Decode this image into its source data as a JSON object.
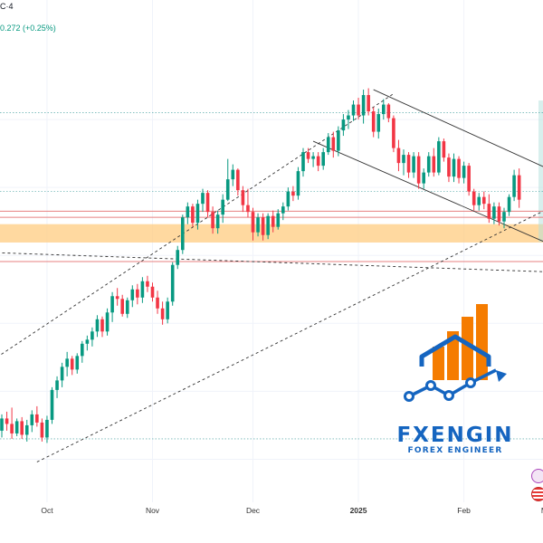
{
  "header": {
    "title_fragment": "C·4",
    "change_text": "0.272 (+0.25%)"
  },
  "colors": {
    "up": "#089981",
    "down": "#f23645",
    "brand": "#1565c0",
    "brand_orange": "#f57c00",
    "zone": "#ffcc80",
    "channel": "#333333",
    "resistance": "#e57373",
    "dotted_level": "#4fa5a5"
  },
  "branding": {
    "name": "FXENGIN",
    "tagline": "FOREX ENGINEER",
    "logo_icon": "rising-bars-chart-icon"
  },
  "side_icons": [
    "lightning-icon",
    "us-flag-icon"
  ],
  "chart_data": {
    "type": "candlestick",
    "x_ticks": [
      "Oct",
      "Nov",
      "Dec",
      "2025",
      "Feb",
      "M"
    ],
    "series": [
      {
        "ohlc": [
          [
            139.6,
            140.8,
            139.1,
            140.5
          ],
          [
            140.5,
            141.0,
            139.6,
            140.1
          ],
          [
            140.1,
            141.3,
            139.0,
            139.4
          ],
          [
            139.4,
            140.5,
            139.2,
            140.3
          ],
          [
            140.3,
            140.6,
            139.0,
            139.3
          ],
          [
            139.3,
            140.4,
            138.8,
            140.0
          ],
          [
            140.0,
            141.1,
            139.5,
            140.8
          ],
          [
            140.8,
            141.4,
            139.9,
            140.2
          ],
          [
            140.2,
            140.5,
            138.8,
            139.1
          ],
          [
            139.1,
            140.7,
            138.7,
            140.4
          ],
          [
            140.4,
            142.8,
            140.1,
            142.6
          ],
          [
            142.6,
            143.6,
            142.0,
            143.3
          ],
          [
            143.3,
            144.6,
            142.8,
            144.3
          ],
          [
            144.3,
            145.4,
            143.6,
            144.9
          ],
          [
            144.9,
            145.1,
            143.7,
            144.1
          ],
          [
            144.1,
            145.3,
            143.8,
            145.1
          ],
          [
            145.1,
            146.2,
            144.6,
            146.0
          ],
          [
            146.0,
            146.6,
            145.5,
            146.3
          ],
          [
            146.3,
            147.2,
            145.8,
            146.9
          ],
          [
            146.9,
            148.1,
            146.5,
            147.8
          ],
          [
            147.8,
            148.0,
            146.5,
            146.9
          ],
          [
            146.9,
            148.6,
            146.6,
            148.3
          ],
          [
            148.3,
            149.8,
            147.6,
            149.5
          ],
          [
            149.5,
            150.1,
            148.8,
            149.3
          ],
          [
            149.3,
            149.6,
            148.0,
            148.2
          ],
          [
            148.2,
            149.4,
            147.9,
            149.2
          ],
          [
            149.2,
            150.3,
            148.7,
            150.0
          ],
          [
            150.0,
            150.4,
            148.9,
            149.4
          ],
          [
            149.4,
            150.9,
            149.0,
            150.6
          ],
          [
            150.6,
            151.0,
            149.8,
            150.2
          ],
          [
            150.2,
            150.5,
            149.1,
            149.4
          ],
          [
            149.4,
            149.9,
            148.2,
            148.6
          ],
          [
            148.6,
            149.1,
            147.4,
            147.8
          ],
          [
            147.8,
            149.4,
            147.5,
            149.1
          ],
          [
            149.1,
            152.0,
            148.8,
            151.8
          ],
          [
            151.8,
            153.2,
            151.5,
            152.9
          ],
          [
            152.9,
            155.5,
            152.6,
            155.3
          ],
          [
            155.3,
            156.4,
            154.8,
            156.1
          ],
          [
            156.1,
            156.3,
            154.6,
            154.9
          ],
          [
            154.9,
            156.6,
            154.4,
            156.3
          ],
          [
            156.3,
            157.4,
            155.7,
            157.1
          ],
          [
            157.1,
            157.3,
            155.3,
            155.7
          ],
          [
            155.7,
            156.1,
            154.1,
            154.5
          ],
          [
            154.5,
            155.8,
            154.1,
            155.5
          ],
          [
            155.5,
            157.0,
            154.9,
            156.6
          ],
          [
            156.6,
            159.6,
            156.5,
            158.1
          ],
          [
            158.1,
            159.2,
            157.6,
            158.8
          ],
          [
            158.8,
            158.9,
            156.9,
            157.3
          ],
          [
            157.3,
            157.6,
            155.7,
            156.2
          ],
          [
            156.2,
            157.4,
            155.3,
            155.7
          ],
          [
            155.7,
            156.0,
            153.6,
            154.2
          ],
          [
            154.2,
            155.6,
            153.9,
            155.3
          ],
          [
            155.3,
            155.6,
            153.6,
            154.0
          ],
          [
            154.0,
            155.6,
            153.7,
            155.4
          ],
          [
            155.4,
            155.8,
            154.2,
            154.6
          ],
          [
            154.6,
            155.9,
            154.4,
            155.6
          ],
          [
            155.6,
            156.4,
            155.1,
            156.1
          ],
          [
            156.1,
            157.5,
            155.8,
            157.2
          ],
          [
            157.2,
            157.6,
            156.5,
            156.9
          ],
          [
            156.9,
            159.0,
            156.6,
            158.7
          ],
          [
            158.7,
            160.4,
            158.3,
            160.1
          ],
          [
            160.1,
            160.4,
            159.3,
            159.6
          ],
          [
            159.6,
            160.1,
            159.0,
            159.8
          ],
          [
            159.8,
            160.1,
            158.7,
            159.1
          ],
          [
            159.1,
            160.4,
            158.8,
            160.1
          ],
          [
            160.1,
            161.5,
            159.9,
            161.2
          ],
          [
            161.2,
            161.6,
            159.7,
            160.2
          ],
          [
            160.2,
            162.0,
            159.8,
            161.7
          ],
          [
            161.7,
            162.9,
            161.3,
            162.5
          ],
          [
            162.5,
            163.2,
            161.8,
            162.8
          ],
          [
            162.8,
            163.9,
            162.4,
            163.6
          ],
          [
            163.6,
            164.1,
            162.5,
            162.8
          ],
          [
            162.8,
            164.7,
            162.2,
            164.3
          ],
          [
            164.3,
            164.8,
            162.8,
            163.1
          ],
          [
            163.1,
            163.4,
            161.2,
            161.6
          ],
          [
            161.6,
            163.3,
            161.1,
            162.9
          ],
          [
            162.9,
            164.0,
            162.5,
            163.6
          ],
          [
            163.6,
            163.7,
            162.3,
            162.6
          ],
          [
            162.6,
            162.8,
            160.1,
            160.4
          ],
          [
            160.4,
            161.0,
            158.7,
            159.3
          ],
          [
            159.3,
            160.3,
            158.4,
            159.9
          ],
          [
            159.9,
            160.1,
            158.2,
            158.6
          ],
          [
            158.6,
            160.1,
            158.2,
            159.8
          ],
          [
            159.8,
            160.1,
            157.4,
            157.8
          ],
          [
            157.8,
            158.9,
            157.4,
            158.6
          ],
          [
            158.6,
            160.1,
            158.3,
            159.8
          ],
          [
            159.8,
            160.4,
            158.3,
            158.6
          ],
          [
            158.6,
            161.2,
            158.4,
            160.9
          ],
          [
            160.9,
            161.1,
            159.4,
            159.7
          ],
          [
            159.7,
            160.0,
            157.9,
            158.3
          ],
          [
            158.3,
            160.0,
            157.9,
            159.6
          ],
          [
            159.6,
            159.8,
            157.8,
            158.2
          ],
          [
            158.2,
            159.4,
            157.8,
            159.1
          ],
          [
            159.1,
            159.3,
            156.9,
            157.2
          ],
          [
            157.2,
            157.4,
            155.8,
            156.2
          ],
          [
            156.2,
            157.1,
            155.8,
            156.8
          ],
          [
            156.8,
            157.2,
            155.9,
            156.3
          ],
          [
            156.3,
            157.0,
            154.9,
            155.2
          ],
          [
            155.2,
            156.4,
            154.8,
            156.1
          ],
          [
            156.1,
            156.4,
            154.7,
            155.0
          ],
          [
            155.0,
            156.0,
            154.5,
            155.7
          ],
          [
            155.7,
            157.0,
            155.4,
            156.8
          ],
          [
            156.8,
            158.8,
            156.5,
            158.4
          ],
          [
            158.4,
            158.9,
            156.0,
            156.6
          ]
        ]
      }
    ],
    "trendlines": [
      {
        "name": "channel-upper",
        "style": "solid",
        "from": [
          74,
          164.7
        ],
        "to": [
          108,
          159.0
        ]
      },
      {
        "name": "channel-lower",
        "style": "solid",
        "from": [
          62,
          160.9
        ],
        "to": [
          108,
          153.5
        ]
      },
      {
        "name": "rising-support-dashed",
        "style": "dashed",
        "from": [
          7,
          137.3
        ],
        "to": [
          108,
          155.8
        ]
      },
      {
        "name": "rising-dashed-upper",
        "style": "dashed",
        "from": [
          -1,
          145.0
        ],
        "to": [
          78,
          164.4
        ]
      },
      {
        "name": "declining-dashed",
        "style": "dashed",
        "from": [
          -1,
          152.7
        ],
        "to": [
          108,
          151.3
        ]
      }
    ],
    "zones": [
      {
        "name": "support-zone",
        "from": 153.45,
        "to": 154.8
      }
    ],
    "levels": [
      {
        "name": "resistance-1",
        "value": 155.75,
        "style": "solid"
      },
      {
        "name": "resistance-2",
        "value": 155.3,
        "style": "solid"
      },
      {
        "name": "resistance-3",
        "value": 152.05,
        "style": "solid"
      },
      {
        "name": "dotted-level",
        "value": 157.2,
        "style": "dotted"
      },
      {
        "name": "dotted-top",
        "value": 163.0,
        "style": "dotted"
      },
      {
        "name": "dotted-low",
        "value": 139.0,
        "style": "dotted"
      }
    ]
  }
}
